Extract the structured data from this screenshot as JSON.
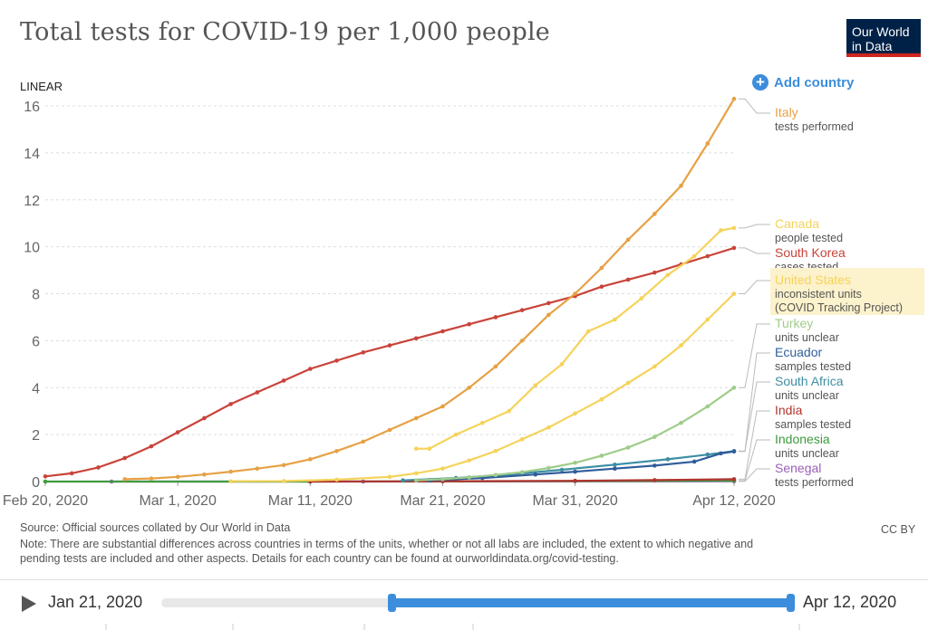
{
  "title": "Total tests for COVID-19 per 1,000 people",
  "logo": {
    "line1": "Our World",
    "line2": "in Data"
  },
  "add_country": "Add country",
  "scale_label": "LINEAR",
  "source": "Source: Official sources collated by Our World in Data",
  "note_line1": "Note: There are substantial differences across countries in terms of the units, whether or not all labs are included, the extent to which negative and",
  "note_line2": "pending tests are included and other aspects. Details for each country can be found at ourworldindata.org/covid-testing.",
  "license": "CC BY",
  "timeline": {
    "start_label": "Jan 21, 2020",
    "end_label": "Apr 12, 2020",
    "range_start_fraction": 0.365,
    "range_end_fraction": 1.0
  },
  "chart_data": {
    "type": "line",
    "title": "Total tests for COVID-19 per 1,000 people",
    "x_start": "2020-02-20",
    "x_end": "2020-04-12",
    "xticks": [
      {
        "date": "2020-02-20",
        "label": "Feb 20, 2020"
      },
      {
        "date": "2020-03-01",
        "label": "Mar 1, 2020"
      },
      {
        "date": "2020-03-11",
        "label": "Mar 11, 2020"
      },
      {
        "date": "2020-03-21",
        "label": "Mar 21, 2020"
      },
      {
        "date": "2020-03-31",
        "label": "Mar 31, 2020"
      },
      {
        "date": "2020-04-12",
        "label": "Apr 12, 2020"
      }
    ],
    "ylim": [
      0,
      16
    ],
    "yticks": [
      0,
      2,
      4,
      6,
      8,
      10,
      12,
      14,
      16
    ],
    "series": [
      {
        "name": "Italy",
        "subtitle": "tests performed",
        "color": "#e6a144",
        "points": [
          [
            "2020-02-26",
            0.1
          ],
          [
            "2020-02-28",
            0.13
          ],
          [
            "2020-03-01",
            0.2
          ],
          [
            "2020-03-03",
            0.3
          ],
          [
            "2020-03-05",
            0.42
          ],
          [
            "2020-03-07",
            0.55
          ],
          [
            "2020-03-09",
            0.7
          ],
          [
            "2020-03-11",
            0.95
          ],
          [
            "2020-03-13",
            1.3
          ],
          [
            "2020-03-15",
            1.7
          ],
          [
            "2020-03-17",
            2.2
          ],
          [
            "2020-03-19",
            2.7
          ],
          [
            "2020-03-21",
            3.2
          ],
          [
            "2020-03-23",
            4.0
          ],
          [
            "2020-03-25",
            4.9
          ],
          [
            "2020-03-27",
            6.0
          ],
          [
            "2020-03-29",
            7.1
          ],
          [
            "2020-03-31",
            8.0
          ],
          [
            "2020-04-02",
            9.1
          ],
          [
            "2020-04-04",
            10.3
          ],
          [
            "2020-04-06",
            11.4
          ],
          [
            "2020-04-08",
            12.6
          ],
          [
            "2020-04-10",
            14.4
          ],
          [
            "2020-04-12",
            16.3
          ]
        ]
      },
      {
        "name": "Canada",
        "subtitle": "people tested",
        "color": "#f5d35a",
        "points": [
          [
            "2020-03-19",
            1.4
          ],
          [
            "2020-03-20",
            1.4
          ],
          [
            "2020-03-22",
            2.0
          ],
          [
            "2020-03-24",
            2.5
          ],
          [
            "2020-03-26",
            3.0
          ],
          [
            "2020-03-28",
            4.1
          ],
          [
            "2020-03-30",
            5.0
          ],
          [
            "2020-04-01",
            6.4
          ],
          [
            "2020-04-03",
            6.9
          ],
          [
            "2020-04-05",
            7.8
          ],
          [
            "2020-04-07",
            8.8
          ],
          [
            "2020-04-09",
            9.6
          ],
          [
            "2020-04-11",
            10.7
          ],
          [
            "2020-04-12",
            10.8
          ]
        ]
      },
      {
        "name": "South Korea",
        "subtitle": "cases tested",
        "color": "#c9433a",
        "points": [
          [
            "2020-02-20",
            0.22
          ],
          [
            "2020-02-22",
            0.35
          ],
          [
            "2020-02-24",
            0.6
          ],
          [
            "2020-02-26",
            1.0
          ],
          [
            "2020-02-28",
            1.5
          ],
          [
            "2020-03-01",
            2.1
          ],
          [
            "2020-03-03",
            2.7
          ],
          [
            "2020-03-05",
            3.3
          ],
          [
            "2020-03-07",
            3.8
          ],
          [
            "2020-03-09",
            4.3
          ],
          [
            "2020-03-11",
            4.8
          ],
          [
            "2020-03-13",
            5.15
          ],
          [
            "2020-03-15",
            5.5
          ],
          [
            "2020-03-17",
            5.8
          ],
          [
            "2020-03-19",
            6.1
          ],
          [
            "2020-03-21",
            6.4
          ],
          [
            "2020-03-23",
            6.7
          ],
          [
            "2020-03-25",
            7.0
          ],
          [
            "2020-03-27",
            7.3
          ],
          [
            "2020-03-29",
            7.6
          ],
          [
            "2020-03-31",
            7.9
          ],
          [
            "2020-04-02",
            8.3
          ],
          [
            "2020-04-04",
            8.6
          ],
          [
            "2020-04-06",
            8.9
          ],
          [
            "2020-04-08",
            9.25
          ],
          [
            "2020-04-10",
            9.6
          ],
          [
            "2020-04-12",
            9.95
          ]
        ]
      },
      {
        "name": "United States",
        "subtitle": "inconsistent units (COVID Tracking Project)",
        "color": "#f5d35a",
        "points": [
          [
            "2020-03-05",
            0.01
          ],
          [
            "2020-03-09",
            0.02
          ],
          [
            "2020-03-13",
            0.08
          ],
          [
            "2020-03-17",
            0.2
          ],
          [
            "2020-03-19",
            0.35
          ],
          [
            "2020-03-21",
            0.55
          ],
          [
            "2020-03-23",
            0.9
          ],
          [
            "2020-03-25",
            1.3
          ],
          [
            "2020-03-27",
            1.8
          ],
          [
            "2020-03-29",
            2.3
          ],
          [
            "2020-03-31",
            2.9
          ],
          [
            "2020-04-02",
            3.5
          ],
          [
            "2020-04-04",
            4.2
          ],
          [
            "2020-04-06",
            4.9
          ],
          [
            "2020-04-08",
            5.8
          ],
          [
            "2020-04-10",
            6.9
          ],
          [
            "2020-04-12",
            8.0
          ]
        ]
      },
      {
        "name": "Turkey",
        "subtitle": "units unclear",
        "color": "#9fcc8a",
        "points": [
          [
            "2020-03-19",
            0.05
          ],
          [
            "2020-03-21",
            0.1
          ],
          [
            "2020-03-23",
            0.18
          ],
          [
            "2020-03-25",
            0.28
          ],
          [
            "2020-03-27",
            0.4
          ],
          [
            "2020-03-29",
            0.58
          ],
          [
            "2020-03-31",
            0.8
          ],
          [
            "2020-04-02",
            1.1
          ],
          [
            "2020-04-04",
            1.45
          ],
          [
            "2020-04-06",
            1.9
          ],
          [
            "2020-04-08",
            2.5
          ],
          [
            "2020-04-10",
            3.2
          ],
          [
            "2020-04-12",
            4.0
          ]
        ]
      },
      {
        "name": "Ecuador",
        "subtitle": "samples tested",
        "color": "#2f5d9b",
        "points": [
          [
            "2020-03-20",
            0.05
          ],
          [
            "2020-03-24",
            0.15
          ],
          [
            "2020-03-28",
            0.3
          ],
          [
            "2020-03-31",
            0.42
          ],
          [
            "2020-04-03",
            0.55
          ],
          [
            "2020-04-06",
            0.68
          ],
          [
            "2020-04-09",
            0.85
          ],
          [
            "2020-04-11",
            1.2
          ],
          [
            "2020-04-12",
            1.28
          ]
        ]
      },
      {
        "name": "South Africa",
        "subtitle": "units unclear",
        "color": "#3d8ea3",
        "points": [
          [
            "2020-03-18",
            0.05
          ],
          [
            "2020-03-22",
            0.15
          ],
          [
            "2020-03-26",
            0.3
          ],
          [
            "2020-03-30",
            0.5
          ],
          [
            "2020-04-03",
            0.72
          ],
          [
            "2020-04-07",
            0.95
          ],
          [
            "2020-04-10",
            1.15
          ],
          [
            "2020-04-12",
            1.3
          ]
        ]
      },
      {
        "name": "India",
        "subtitle": "samples tested",
        "color": "#b0352f",
        "points": [
          [
            "2020-03-11",
            0.0
          ],
          [
            "2020-03-21",
            0.01
          ],
          [
            "2020-03-31",
            0.03
          ],
          [
            "2020-04-06",
            0.06
          ],
          [
            "2020-04-12",
            0.1
          ]
        ]
      },
      {
        "name": "Indonesia",
        "subtitle": "units unclear",
        "color": "#3f9a3f",
        "points": [
          [
            "2020-02-20",
            0.0
          ],
          [
            "2020-03-11",
            0.0
          ],
          [
            "2020-03-31",
            0.02
          ],
          [
            "2020-04-12",
            0.04
          ]
        ]
      },
      {
        "name": "Senegal",
        "subtitle": "tests performed",
        "color": "#9a5fb8",
        "points": [
          [
            "2020-02-25",
            0.0
          ],
          [
            "2020-03-15",
            0.0
          ],
          [
            "2020-04-12",
            0.01
          ]
        ]
      }
    ]
  }
}
